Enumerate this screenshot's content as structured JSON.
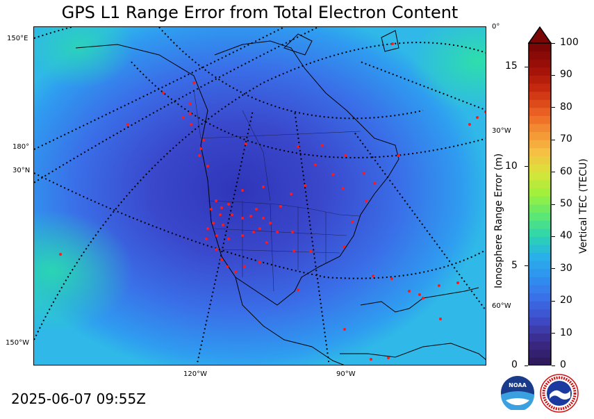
{
  "title": "GPS L1 Range Error from Total Electron Content",
  "timestamp": "2025-06-07 09:55Z",
  "map": {
    "lon_labels_bottom": [
      "120°W",
      "90°W"
    ],
    "lat_labels_left": [
      "150°E",
      "180°",
      "30°N",
      "150°W"
    ],
    "lon_labels_right": [
      "0°",
      "30°W",
      "60°W"
    ]
  },
  "colorbar": {
    "tec_label": "Vertical TEC (TECU)",
    "tec_ticks": [
      "100",
      "90",
      "80",
      "70",
      "60",
      "50",
      "40",
      "30",
      "20",
      "10",
      "0"
    ],
    "range_label": "Ionosphere Range Error (m)",
    "range_ticks": [
      "15",
      "10",
      "5",
      "0"
    ],
    "tec_range": [
      0,
      100
    ],
    "range_error_range_m": [
      0,
      16.2
    ],
    "extend": "max",
    "colors": [
      "#2e1a5c",
      "#3b2a8a",
      "#3f4bc8",
      "#3a6ee8",
      "#2f90f0",
      "#29b0e8",
      "#2cd5b0",
      "#5ee870",
      "#9ef03c",
      "#d8e43a",
      "#f5c043",
      "#f49034",
      "#e85a20",
      "#c82a10",
      "#a01008",
      "#7a0606"
    ]
  },
  "logos": {
    "noaa": "NOAA",
    "nws": "NATIONAL WEATHER SERVICE"
  },
  "colors": {
    "background_field_low": "#3a4ad0",
    "background_field_mid": "#3a8af0",
    "background_field_high": "#2ad0b0",
    "station_dot": "#ff1a1a",
    "coastline": "#000000"
  }
}
